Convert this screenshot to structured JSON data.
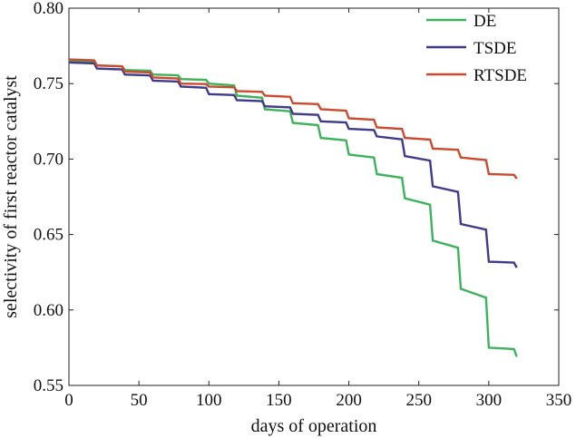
{
  "chart_data": {
    "type": "line",
    "title": "",
    "xlabel": "days of operation",
    "ylabel": "selectivity of first reactor catalyst",
    "xlim": [
      0,
      350
    ],
    "ylim": [
      0.55,
      0.8
    ],
    "xticks": [
      0,
      50,
      100,
      150,
      200,
      250,
      300,
      350
    ],
    "xtick_labels": [
      "0",
      "50",
      "100",
      "150",
      "200",
      "250",
      "300",
      "350"
    ],
    "yticks": [
      0.55,
      0.6,
      0.65,
      0.7,
      0.75,
      0.8
    ],
    "ytick_labels": [
      "0.55",
      "0.60",
      "0.65",
      "0.70",
      "0.75",
      "0.80"
    ],
    "grid": false,
    "legend_position": "top-right",
    "series": [
      {
        "name": "DE",
        "color": "#3cb35a",
        "step": true,
        "points": [
          [
            0,
            0.765
          ],
          [
            20,
            0.762
          ],
          [
            40,
            0.759
          ],
          [
            60,
            0.756
          ],
          [
            80,
            0.753
          ],
          [
            100,
            0.75
          ],
          [
            120,
            0.742
          ],
          [
            140,
            0.733
          ],
          [
            160,
            0.724
          ],
          [
            180,
            0.714
          ],
          [
            200,
            0.703
          ],
          [
            220,
            0.69
          ],
          [
            240,
            0.674
          ],
          [
            260,
            0.646
          ],
          [
            280,
            0.614
          ],
          [
            300,
            0.575
          ],
          [
            320,
            0.569
          ]
        ]
      },
      {
        "name": "TSDE",
        "color": "#3f3a8c",
        "step": true,
        "points": [
          [
            0,
            0.764
          ],
          [
            20,
            0.76
          ],
          [
            40,
            0.756
          ],
          [
            60,
            0.752
          ],
          [
            80,
            0.748
          ],
          [
            100,
            0.743
          ],
          [
            120,
            0.739
          ],
          [
            140,
            0.735
          ],
          [
            160,
            0.73
          ],
          [
            180,
            0.725
          ],
          [
            200,
            0.72
          ],
          [
            220,
            0.715
          ],
          [
            240,
            0.702
          ],
          [
            260,
            0.682
          ],
          [
            280,
            0.657
          ],
          [
            300,
            0.632
          ],
          [
            320,
            0.628
          ]
        ]
      },
      {
        "name": "RTSDE",
        "color": "#cc4a2e",
        "step": true,
        "points": [
          [
            0,
            0.766
          ],
          [
            20,
            0.762
          ],
          [
            40,
            0.758
          ],
          [
            60,
            0.754
          ],
          [
            80,
            0.75
          ],
          [
            100,
            0.748
          ],
          [
            120,
            0.745
          ],
          [
            140,
            0.742
          ],
          [
            160,
            0.737
          ],
          [
            180,
            0.733
          ],
          [
            200,
            0.727
          ],
          [
            220,
            0.721
          ],
          [
            240,
            0.714
          ],
          [
            260,
            0.707
          ],
          [
            280,
            0.701
          ],
          [
            300,
            0.69
          ],
          [
            320,
            0.687
          ]
        ]
      }
    ]
  }
}
